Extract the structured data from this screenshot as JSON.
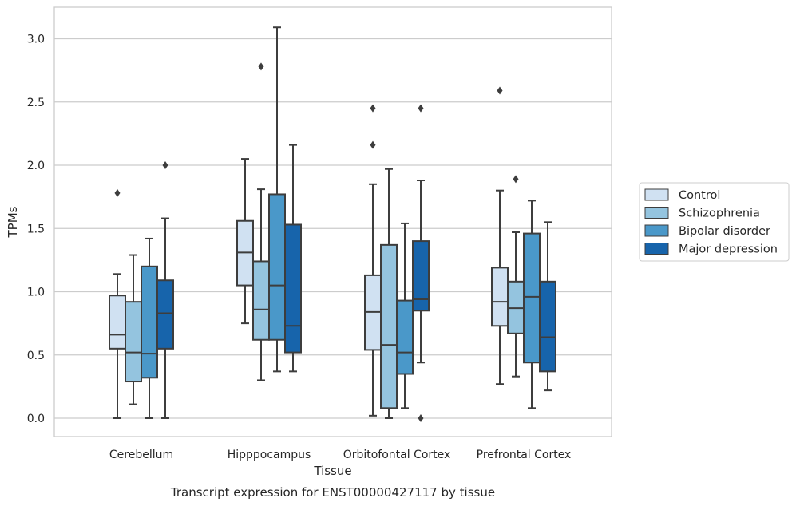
{
  "chart_data": {
    "type": "box",
    "xlabel": "Tissue",
    "ylabel": "TPMs",
    "caption": "Transcript expression for ENST00000427117 by tissue",
    "ylim": [
      -0.15,
      3.25
    ],
    "yticks": [
      "0.0",
      "0.5",
      "1.0",
      "1.5",
      "2.0",
      "2.5",
      "3.0"
    ],
    "grid": "horizontal",
    "legend_position": "right",
    "categories": [
      "Cerebellum",
      "Hipppocampus",
      "Orbitofontal Cortex",
      "Prefrontal Cortex"
    ],
    "series": [
      {
        "name": "Control",
        "color": "#d0e1f2",
        "boxes": [
          {
            "whislo": 0.0,
            "q1": 0.55,
            "med": 0.66,
            "q3": 0.97,
            "whishi": 1.14,
            "fliers": [
              1.78
            ]
          },
          {
            "whislo": 0.75,
            "q1": 1.05,
            "med": 1.31,
            "q3": 1.56,
            "whishi": 2.05,
            "fliers": []
          },
          {
            "whislo": 0.02,
            "q1": 0.54,
            "med": 0.84,
            "q3": 1.13,
            "whishi": 1.85,
            "fliers": [
              2.16,
              2.45
            ]
          },
          {
            "whislo": 0.27,
            "q1": 0.73,
            "med": 0.92,
            "q3": 1.19,
            "whishi": 1.8,
            "fliers": [
              2.59
            ]
          }
        ]
      },
      {
        "name": "Schizophrenia",
        "color": "#94c4df",
        "boxes": [
          {
            "whislo": 0.11,
            "q1": 0.29,
            "med": 0.52,
            "q3": 0.92,
            "whishi": 1.29,
            "fliers": []
          },
          {
            "whislo": 0.3,
            "q1": 0.62,
            "med": 0.86,
            "q3": 1.24,
            "whishi": 1.81,
            "fliers": [
              2.78
            ]
          },
          {
            "whislo": 0.0,
            "q1": 0.08,
            "med": 0.58,
            "q3": 1.37,
            "whishi": 1.97,
            "fliers": []
          },
          {
            "whislo": 0.33,
            "q1": 0.67,
            "med": 0.87,
            "q3": 1.08,
            "whishi": 1.47,
            "fliers": [
              1.89
            ]
          }
        ]
      },
      {
        "name": "Bipolar disorder",
        "color": "#4a98c9",
        "boxes": [
          {
            "whislo": 0.0,
            "q1": 0.32,
            "med": 0.51,
            "q3": 1.2,
            "whishi": 1.42,
            "fliers": []
          },
          {
            "whislo": 0.37,
            "q1": 0.62,
            "med": 1.05,
            "q3": 1.77,
            "whishi": 3.09,
            "fliers": []
          },
          {
            "whislo": 0.08,
            "q1": 0.35,
            "med": 0.52,
            "q3": 0.93,
            "whishi": 1.54,
            "fliers": []
          },
          {
            "whislo": 0.08,
            "q1": 0.44,
            "med": 0.96,
            "q3": 1.46,
            "whishi": 1.72,
            "fliers": []
          }
        ]
      },
      {
        "name": "Major depression",
        "color": "#1764ab",
        "boxes": [
          {
            "whislo": 0.0,
            "q1": 0.55,
            "med": 0.83,
            "q3": 1.09,
            "whishi": 1.58,
            "fliers": [
              2.0
            ]
          },
          {
            "whislo": 0.37,
            "q1": 0.52,
            "med": 0.73,
            "q3": 1.53,
            "whishi": 2.16,
            "fliers": []
          },
          {
            "whislo": 0.44,
            "q1": 0.85,
            "med": 0.94,
            "q3": 1.4,
            "whishi": 1.88,
            "fliers": [
              0.0,
              2.45
            ]
          },
          {
            "whislo": 0.22,
            "q1": 0.37,
            "med": 0.64,
            "q3": 1.08,
            "whishi": 1.55,
            "fliers": []
          }
        ]
      }
    ]
  }
}
